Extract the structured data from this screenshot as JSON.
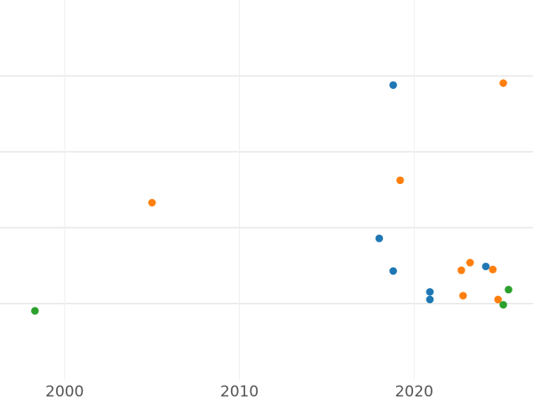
{
  "chart_data": {
    "type": "scatter",
    "title": "",
    "xlabel": "",
    "ylabel": "",
    "xlim": [
      1996.3,
      2026.8
    ],
    "ylim": [
      0,
      100
    ],
    "x_ticks": [
      2000,
      2010,
      2020
    ],
    "x_tick_labels": [
      "2000",
      "2010",
      "2020"
    ],
    "y_grid": [
      20,
      40,
      60,
      80
    ],
    "x_grid": [
      2000,
      2010,
      2020
    ],
    "grid": true,
    "legend": "none",
    "series": [
      {
        "color": "#1f77b4",
        "points": [
          {
            "x": 2018.8,
            "y": 77.6
          },
          {
            "x": 2018.0,
            "y": 37.2
          },
          {
            "x": 2018.8,
            "y": 28.6
          },
          {
            "x": 2020.9,
            "y": 23.1
          },
          {
            "x": 2020.9,
            "y": 21.1
          },
          {
            "x": 2024.1,
            "y": 29.8
          }
        ]
      },
      {
        "color": "#ff7f0e",
        "points": [
          {
            "x": 2025.1,
            "y": 78.1
          },
          {
            "x": 2019.2,
            "y": 52.5
          },
          {
            "x": 2005.0,
            "y": 46.6
          },
          {
            "x": 2023.2,
            "y": 30.8
          },
          {
            "x": 2022.7,
            "y": 28.8
          },
          {
            "x": 2024.5,
            "y": 29.0
          },
          {
            "x": 2022.8,
            "y": 22.1
          },
          {
            "x": 2024.8,
            "y": 21.1
          }
        ]
      },
      {
        "color": "#2ca02c",
        "points": [
          {
            "x": 2025.4,
            "y": 23.7
          },
          {
            "x": 2025.1,
            "y": 19.7
          },
          {
            "x": 1998.3,
            "y": 18.1
          }
        ]
      }
    ]
  }
}
